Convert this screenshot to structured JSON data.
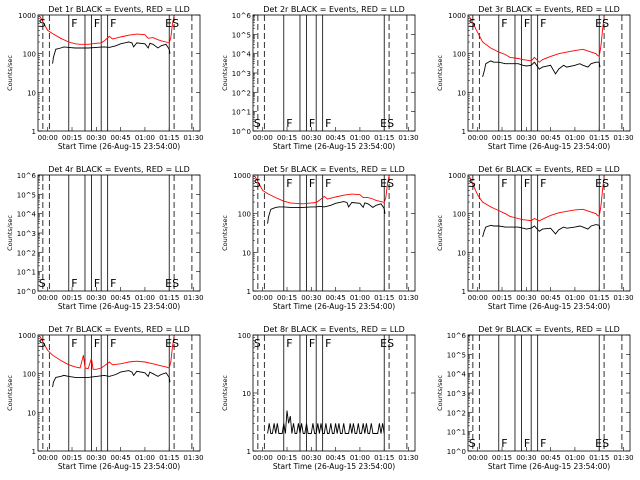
{
  "figure": {
    "xlabel": "Start Time (26-Aug-15 23:54:00)",
    "ylabel": "Counts/sec",
    "x_ticks": [
      "00:00",
      "00:15",
      "00:30",
      "00:45",
      "01:00",
      "01:15",
      "01:30"
    ],
    "x_tick_minutes": [
      0,
      15,
      30,
      45,
      60,
      75,
      90
    ],
    "xlim_minutes": [
      -6,
      94
    ],
    "colors": {
      "events": "#000000",
      "lld": "#ff0000",
      "axes": "#000000",
      "background": "#ffffff"
    },
    "markers": {
      "dashed_minutes": [
        -3,
        1,
        78,
        89
      ],
      "solid_minutes": [
        13,
        23,
        27,
        33,
        37,
        75
      ],
      "labels": [
        {
          "text": "S",
          "minute": -5.5
        },
        {
          "text": "F",
          "minute": 14.5
        },
        {
          "text": "F",
          "minute": 28.5
        },
        {
          "text": "F",
          "minute": 38.5
        },
        {
          "text": "ES",
          "minute": 72.5
        }
      ]
    }
  },
  "chart_data": [
    {
      "type": "line",
      "title": "Det 1r BLACK = Events, RED = LLD",
      "y_scale": "log",
      "ylim": [
        1,
        1000
      ],
      "y_ticks": [
        "1",
        "10",
        "100",
        "1000"
      ],
      "y_tick_values": [
        1,
        10,
        100,
        1000
      ],
      "label_row": "top",
      "series": [
        {
          "color": "#ff0000",
          "x": [
            -5,
            0,
            3,
            8,
            13,
            17,
            20,
            25,
            30,
            33,
            35,
            38,
            40,
            45,
            50,
            55,
            60,
            62,
            65,
            68,
            70,
            73,
            74,
            75,
            76,
            77,
            78
          ],
          "y": [
            950,
            400,
            330,
            250,
            200,
            180,
            175,
            175,
            185,
            190,
            215,
            280,
            240,
            270,
            300,
            320,
            310,
            250,
            260,
            230,
            215,
            200,
            195,
            190,
            260,
            600,
            950
          ]
        },
        {
          "color": "#000000",
          "x": [
            3,
            3.5,
            5,
            8,
            10,
            13,
            17,
            20,
            25,
            30,
            33,
            35,
            38,
            42,
            45,
            50,
            52,
            53,
            55,
            60,
            62,
            63,
            65,
            68,
            70,
            73,
            75,
            75.5
          ],
          "y": [
            55,
            80,
            130,
            140,
            150,
            145,
            140,
            140,
            140,
            145,
            148,
            150,
            145,
            160,
            180,
            200,
            190,
            150,
            190,
            180,
            140,
            185,
            175,
            140,
            160,
            175,
            130,
            100
          ]
        }
      ]
    },
    {
      "type": "line",
      "title": "Det 2r BLACK = Events, RED = LLD",
      "y_scale": "log",
      "ylim": [
        1,
        1000000
      ],
      "y_ticks": [
        "10^0",
        "10^1",
        "10^2",
        "10^3",
        "10^4",
        "10^5",
        "10^6"
      ],
      "y_tick_values": [
        1,
        10,
        100,
        1000,
        10000,
        100000,
        1000000
      ],
      "label_row": "bottom",
      "series": []
    },
    {
      "type": "line",
      "title": "Det 3r BLACK = Events, RED = LLD",
      "y_scale": "log",
      "ylim": [
        1,
        1000
      ],
      "y_ticks": [
        "1",
        "10",
        "100",
        "1000"
      ],
      "y_tick_values": [
        1,
        10,
        100,
        1000
      ],
      "label_row": "top",
      "series": [
        {
          "color": "#ff0000",
          "x": [
            -5,
            0,
            3,
            8,
            13,
            17,
            20,
            25,
            28,
            30,
            33,
            35,
            38,
            40,
            45,
            50,
            55,
            60,
            65,
            70,
            73,
            74,
            75,
            76,
            77,
            78
          ],
          "y": [
            900,
            350,
            200,
            140,
            110,
            95,
            80,
            75,
            70,
            68,
            65,
            80,
            60,
            70,
            85,
            100,
            110,
            120,
            130,
            110,
            100,
            90,
            85,
            150,
            400,
            900
          ]
        },
        {
          "color": "#000000",
          "x": [
            3,
            4,
            5,
            8,
            10,
            13,
            17,
            20,
            25,
            28,
            30,
            33,
            35,
            38,
            40,
            45,
            48,
            50,
            53,
            55,
            60,
            63,
            65,
            68,
            70,
            73,
            75,
            75.5
          ],
          "y": [
            25,
            35,
            55,
            65,
            60,
            60,
            55,
            55,
            55,
            50,
            48,
            50,
            60,
            40,
            45,
            50,
            30,
            40,
            50,
            45,
            50,
            55,
            50,
            45,
            55,
            60,
            60,
            45
          ]
        }
      ]
    },
    {
      "type": "line",
      "title": "Det 4r BLACK = Events, RED = LLD",
      "y_scale": "log",
      "ylim": [
        1,
        1000000
      ],
      "y_ticks": [
        "10^0",
        "10^1",
        "10^2",
        "10^3",
        "10^4",
        "10^5",
        "10^6"
      ],
      "y_tick_values": [
        1,
        10,
        100,
        1000,
        10000,
        100000,
        1000000
      ],
      "label_row": "bottom",
      "series": []
    },
    {
      "type": "line",
      "title": "Det 5r BLACK = Events, RED = LLD",
      "y_scale": "log",
      "ylim": [
        1,
        1000
      ],
      "y_ticks": [
        "1",
        "10",
        "100",
        "1000"
      ],
      "y_tick_values": [
        1,
        10,
        100,
        1000
      ],
      "label_row": "top",
      "series": [
        {
          "color": "#ff0000",
          "x": [
            -5,
            0,
            3,
            8,
            13,
            17,
            20,
            25,
            30,
            33,
            35,
            38,
            40,
            45,
            50,
            55,
            60,
            62,
            65,
            68,
            70,
            73,
            74,
            75,
            76,
            77,
            78
          ],
          "y": [
            950,
            400,
            330,
            260,
            210,
            190,
            185,
            180,
            190,
            195,
            220,
            280,
            240,
            270,
            300,
            320,
            310,
            260,
            260,
            240,
            220,
            205,
            200,
            195,
            260,
            600,
            950
          ]
        },
        {
          "color": "#000000",
          "x": [
            3,
            3.5,
            5,
            8,
            10,
            13,
            17,
            20,
            25,
            30,
            33,
            35,
            38,
            42,
            45,
            50,
            52,
            53,
            55,
            60,
            62,
            63,
            65,
            68,
            70,
            73,
            75,
            75.5
          ],
          "y": [
            55,
            80,
            130,
            145,
            150,
            150,
            145,
            145,
            145,
            150,
            150,
            155,
            150,
            165,
            185,
            205,
            195,
            150,
            195,
            185,
            145,
            190,
            180,
            145,
            165,
            180,
            135,
            100
          ]
        }
      ]
    },
    {
      "type": "line",
      "title": "Det 6r BLACK = Events, RED = LLD",
      "y_scale": "log",
      "ylim": [
        1,
        1000
      ],
      "y_ticks": [
        "1",
        "10",
        "100",
        "1000"
      ],
      "y_tick_values": [
        1,
        10,
        100,
        1000
      ],
      "label_row": "top",
      "series": [
        {
          "color": "#ff0000",
          "x": [
            -5,
            0,
            3,
            8,
            13,
            17,
            20,
            25,
            28,
            30,
            33,
            35,
            38,
            40,
            45,
            50,
            55,
            60,
            65,
            70,
            73,
            74,
            75,
            76,
            77,
            78
          ],
          "y": [
            900,
            300,
            200,
            150,
            120,
            100,
            85,
            75,
            70,
            68,
            66,
            75,
            65,
            72,
            90,
            105,
            115,
            125,
            130,
            110,
            100,
            90,
            85,
            150,
            400,
            900
          ]
        },
        {
          "color": "#000000",
          "x": [
            3,
            4,
            5,
            8,
            10,
            13,
            17,
            20,
            25,
            28,
            30,
            33,
            35,
            38,
            40,
            45,
            48,
            50,
            53,
            55,
            60,
            63,
            65,
            68,
            70,
            73,
            75,
            75.5
          ],
          "y": [
            25,
            35,
            45,
            50,
            48,
            48,
            45,
            45,
            45,
            42,
            40,
            42,
            48,
            35,
            40,
            42,
            30,
            38,
            45,
            42,
            45,
            48,
            45,
            40,
            48,
            52,
            50,
            40
          ]
        }
      ]
    },
    {
      "type": "line",
      "title": "Det 7r BLACK = Events, RED = LLD",
      "y_scale": "log",
      "ylim": [
        1,
        1000
      ],
      "y_ticks": [
        "1",
        "10",
        "100",
        "1000"
      ],
      "y_tick_values": [
        1,
        10,
        100,
        1000
      ],
      "label_row": "top",
      "series": [
        {
          "color": "#ff0000",
          "x": [
            -5,
            0,
            3,
            8,
            13,
            17,
            20,
            22,
            23,
            25,
            27,
            28,
            30,
            33,
            35,
            38,
            40,
            45,
            50,
            55,
            60,
            65,
            70,
            73,
            74,
            75,
            76,
            77,
            78
          ],
          "y": [
            950,
            400,
            300,
            220,
            170,
            150,
            140,
            300,
            140,
            135,
            250,
            130,
            130,
            140,
            160,
            200,
            170,
            180,
            200,
            210,
            200,
            180,
            160,
            150,
            145,
            140,
            200,
            500,
            950
          ]
        },
        {
          "color": "#000000",
          "x": [
            3,
            3.5,
            5,
            8,
            10,
            13,
            17,
            20,
            25,
            30,
            33,
            35,
            38,
            42,
            45,
            50,
            52,
            53,
            55,
            60,
            62,
            63,
            65,
            68,
            70,
            73,
            75,
            75.5
          ],
          "y": [
            45,
            60,
            80,
            85,
            90,
            85,
            80,
            80,
            80,
            85,
            88,
            90,
            85,
            95,
            110,
            120,
            110,
            90,
            115,
            105,
            85,
            110,
            100,
            85,
            95,
            105,
            80,
            60
          ]
        }
      ]
    },
    {
      "type": "line",
      "title": "Det 8r BLACK = Events, RED = LLD",
      "y_scale": "log",
      "ylim": [
        1,
        100
      ],
      "y_ticks": [
        "1",
        "10",
        "100"
      ],
      "y_tick_values": [
        1,
        10,
        100
      ],
      "label_row": "top",
      "series": [
        {
          "color": "#000000",
          "x": [
            3,
            4,
            5,
            6,
            7,
            8,
            9,
            10,
            11,
            12,
            13,
            14,
            15,
            16,
            17,
            18,
            19,
            20,
            21,
            22,
            23,
            24,
            25,
            26,
            27,
            28,
            29,
            30,
            31,
            32,
            33,
            34,
            35,
            36,
            37,
            38,
            39,
            40,
            41,
            42,
            43,
            44,
            45,
            46,
            47,
            48,
            49,
            50,
            51,
            52,
            53,
            54,
            55,
            56,
            57,
            58,
            59,
            60,
            61,
            62,
            63,
            64,
            65,
            66,
            67,
            68,
            69,
            70,
            71,
            72,
            73,
            74,
            75
          ],
          "y": [
            2,
            3,
            2,
            2,
            3,
            2,
            3,
            2,
            2,
            2,
            3,
            2,
            5,
            3,
            4,
            2,
            3,
            2,
            2,
            3,
            2,
            3,
            2,
            2,
            3,
            2,
            2,
            2,
            3,
            2,
            2,
            3,
            2,
            3,
            2,
            2,
            3,
            2,
            2,
            3,
            2,
            2,
            3,
            2,
            3,
            2,
            2,
            3,
            2,
            2,
            2,
            3,
            2,
            3,
            2,
            2,
            3,
            2,
            2,
            3,
            2,
            3,
            2,
            2,
            3,
            2,
            2,
            2,
            2,
            3,
            2,
            3,
            2
          ]
        }
      ]
    },
    {
      "type": "line",
      "title": "Det 9r BLACK = Events, RED = LLD",
      "y_scale": "log",
      "ylim": [
        1,
        1000000
      ],
      "y_ticks": [
        "10^0",
        "10^1",
        "10^2",
        "10^3",
        "10^4",
        "10^5",
        "10^6"
      ],
      "y_tick_values": [
        1,
        10,
        100,
        1000,
        10000,
        100000,
        1000000
      ],
      "label_row": "bottom",
      "series": []
    }
  ]
}
